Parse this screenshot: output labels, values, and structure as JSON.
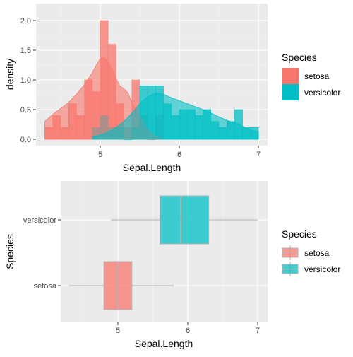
{
  "chart_data": [
    {
      "type": "histogram-density",
      "xlabel": "Sepal.Length",
      "ylabel": "density",
      "xlim": [
        4.3,
        7.0
      ],
      "ylim": [
        0,
        2.2
      ],
      "x_ticks": [
        5,
        6,
        7
      ],
      "y_ticks": [
        0.0,
        0.5,
        1.0,
        1.5,
        2.0
      ],
      "y_tick_labels": [
        "0.0",
        "0.5",
        "1.0",
        "1.5",
        "2.0"
      ],
      "bin_width": 0.1,
      "grid": true,
      "legend_position": "right",
      "legend": {
        "title": "Species",
        "entries": [
          {
            "name": "setosa",
            "color": "#F8766D"
          },
          {
            "name": "versicolor",
            "color": "#00BFC4"
          }
        ]
      },
      "series": [
        {
          "name": "setosa",
          "color": "#F8766D",
          "histogram": [
            {
              "x0": 4.3,
              "x1": 4.4,
              "density": 0.2
            },
            {
              "x0": 4.4,
              "x1": 4.5,
              "density": 0.4
            },
            {
              "x0": 4.5,
              "x1": 4.6,
              "density": 0.2
            },
            {
              "x0": 4.6,
              "x1": 4.7,
              "density": 0.6
            },
            {
              "x0": 4.7,
              "x1": 4.8,
              "density": 0.4
            },
            {
              "x0": 4.8,
              "x1": 4.9,
              "density": 1.0
            },
            {
              "x0": 4.9,
              "x1": 5.0,
              "density": 0.8
            },
            {
              "x0": 5.0,
              "x1": 5.1,
              "density": 2.0
            },
            {
              "x0": 5.1,
              "x1": 5.2,
              "density": 1.6
            },
            {
              "x0": 5.2,
              "x1": 5.3,
              "density": 0.6
            },
            {
              "x0": 5.3,
              "x1": 5.4,
              "density": 0.2
            },
            {
              "x0": 5.4,
              "x1": 5.5,
              "density": 1.0
            },
            {
              "x0": 5.5,
              "x1": 5.6,
              "density": 0.4
            },
            {
              "x0": 5.6,
              "x1": 5.7,
              "density": 0.0
            },
            {
              "x0": 5.7,
              "x1": 5.8,
              "density": 0.4
            }
          ],
          "density_curve": [
            [
              4.3,
              0.3
            ],
            [
              4.4,
              0.42
            ],
            [
              4.5,
              0.52
            ],
            [
              4.6,
              0.62
            ],
            [
              4.7,
              0.76
            ],
            [
              4.8,
              0.92
            ],
            [
              4.9,
              1.12
            ],
            [
              4.95,
              1.25
            ],
            [
              5.0,
              1.36
            ],
            [
              5.05,
              1.38
            ],
            [
              5.1,
              1.3
            ],
            [
              5.15,
              1.18
            ],
            [
              5.2,
              1.02
            ],
            [
              5.25,
              0.9
            ],
            [
              5.3,
              0.85
            ],
            [
              5.35,
              0.78
            ],
            [
              5.4,
              0.62
            ],
            [
              5.5,
              0.38
            ],
            [
              5.6,
              0.16
            ],
            [
              5.7,
              0.05
            ],
            [
              5.8,
              0.0
            ]
          ]
        },
        {
          "name": "versicolor",
          "color": "#00BFC4",
          "histogram": [
            {
              "x0": 4.9,
              "x1": 5.0,
              "density": 0.2
            },
            {
              "x0": 5.0,
              "x1": 5.1,
              "density": 0.4
            },
            {
              "x0": 5.1,
              "x1": 5.2,
              "density": 0.2
            },
            {
              "x0": 5.2,
              "x1": 5.3,
              "density": 0.2
            },
            {
              "x0": 5.3,
              "x1": 5.4,
              "density": 0.0
            },
            {
              "x0": 5.4,
              "x1": 5.5,
              "density": 0.2
            },
            {
              "x0": 5.5,
              "x1": 5.6,
              "density": 0.9
            },
            {
              "x0": 5.6,
              "x1": 5.7,
              "density": 0.9
            },
            {
              "x0": 5.7,
              "x1": 5.8,
              "density": 0.9
            },
            {
              "x0": 5.8,
              "x1": 5.9,
              "density": 0.6
            },
            {
              "x0": 5.9,
              "x1": 6.0,
              "density": 0.4
            },
            {
              "x0": 6.0,
              "x1": 6.1,
              "density": 0.5
            },
            {
              "x0": 6.1,
              "x1": 6.2,
              "density": 0.5
            },
            {
              "x0": 6.2,
              "x1": 6.3,
              "density": 0.4
            },
            {
              "x0": 6.3,
              "x1": 6.4,
              "density": 0.5
            },
            {
              "x0": 6.4,
              "x1": 6.5,
              "density": 0.3
            },
            {
              "x0": 6.5,
              "x1": 6.6,
              "density": 0.2
            },
            {
              "x0": 6.6,
              "x1": 6.7,
              "density": 0.3
            },
            {
              "x0": 6.7,
              "x1": 6.8,
              "density": 0.5
            },
            {
              "x0": 6.8,
              "x1": 6.9,
              "density": 0.2
            },
            {
              "x0": 6.9,
              "x1": 7.0,
              "density": 0.2
            }
          ],
          "density_curve": [
            [
              4.9,
              0.04
            ],
            [
              5.0,
              0.07
            ],
            [
              5.1,
              0.12
            ],
            [
              5.2,
              0.2
            ],
            [
              5.3,
              0.3
            ],
            [
              5.4,
              0.44
            ],
            [
              5.5,
              0.6
            ],
            [
              5.6,
              0.72
            ],
            [
              5.7,
              0.78
            ],
            [
              5.8,
              0.76
            ],
            [
              5.9,
              0.7
            ],
            [
              6.0,
              0.65
            ],
            [
              6.1,
              0.6
            ],
            [
              6.2,
              0.55
            ],
            [
              6.3,
              0.5
            ],
            [
              6.4,
              0.44
            ],
            [
              6.5,
              0.38
            ],
            [
              6.6,
              0.32
            ],
            [
              6.7,
              0.28
            ],
            [
              6.8,
              0.22
            ],
            [
              6.9,
              0.16
            ],
            [
              7.0,
              0.12
            ]
          ]
        }
      ]
    },
    {
      "type": "boxplot",
      "orientation": "horizontal",
      "xlabel": "Sepal.Length",
      "ylabel": "Species",
      "xlim": [
        4.3,
        7.0
      ],
      "x_ticks": [
        5,
        6,
        7
      ],
      "categories": [
        "setosa",
        "versicolor"
      ],
      "grid": true,
      "legend_position": "right",
      "legend": {
        "title": "Species",
        "entries": [
          {
            "name": "setosa",
            "color": "#F8766D"
          },
          {
            "name": "versicolor",
            "color": "#00BFC4"
          }
        ]
      },
      "series": [
        {
          "name": "setosa",
          "color": "#F8766D",
          "min": 4.3,
          "q1": 4.8,
          "median": 5.0,
          "q3": 5.2,
          "max": 5.8
        },
        {
          "name": "versicolor",
          "color": "#00BFC4",
          "min": 4.9,
          "q1": 5.6,
          "median": 5.9,
          "q3": 6.3,
          "max": 7.0
        }
      ]
    }
  ]
}
